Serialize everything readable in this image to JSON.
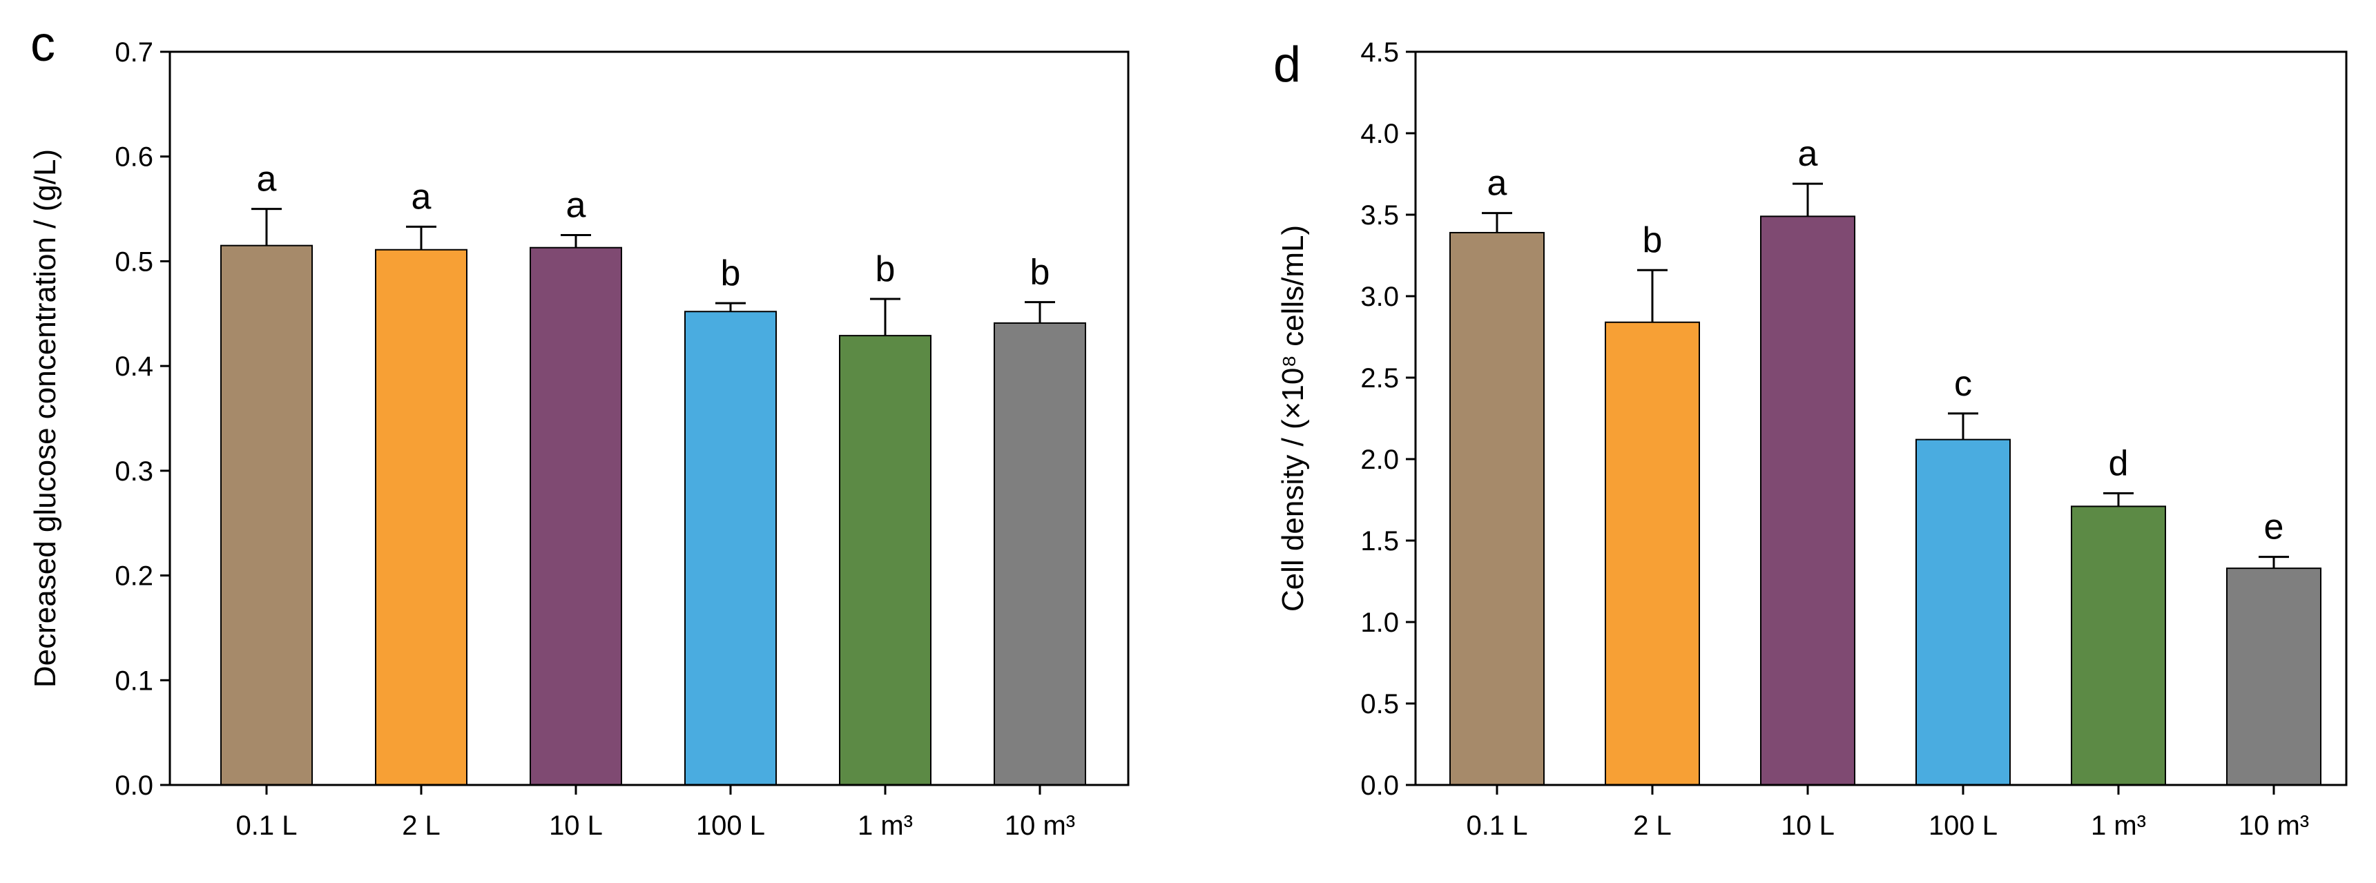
{
  "chart_data": [
    {
      "type": "bar",
      "panel_label": "c",
      "categories": [
        "0.1 L",
        "2 L",
        "10 L",
        "100 L",
        "1 m³",
        "10 m³"
      ],
      "values": [
        0.515,
        0.511,
        0.513,
        0.452,
        0.429,
        0.441
      ],
      "errors": [
        0.035,
        0.022,
        0.012,
        0.008,
        0.035,
        0.02
      ],
      "significance": [
        "a",
        "a",
        "a",
        "b",
        "b",
        "b"
      ],
      "bar_colors": [
        "#a68a6a",
        "#f7a035",
        "#7f4a72",
        "#4aace0",
        "#5c8a45",
        "#7f7f7f"
      ],
      "xlabel": "",
      "ylabel": "Decreased glucose concentration / (g/L)",
      "ylim": [
        0,
        0.7
      ],
      "yticks": [
        "0.0",
        "0.1",
        "0.2",
        "0.3",
        "0.4",
        "0.5",
        "0.6",
        "0.7"
      ],
      "grid": false,
      "legend": "none"
    },
    {
      "type": "bar",
      "panel_label": "d",
      "categories": [
        "0.1 L",
        "2 L",
        "10 L",
        "100 L",
        "1 m³",
        "10 m³"
      ],
      "values": [
        3.39,
        2.84,
        3.49,
        2.12,
        1.71,
        1.33
      ],
      "errors": [
        0.12,
        0.32,
        0.2,
        0.16,
        0.08,
        0.07
      ],
      "significance": [
        "a",
        "b",
        "a",
        "c",
        "d",
        "e"
      ],
      "bar_colors": [
        "#a68a6a",
        "#f7a035",
        "#7f4a72",
        "#4aace0",
        "#5c8a45",
        "#7f7f7f"
      ],
      "xlabel": "",
      "ylabel": "Cell density / (×10⁸ cells/mL)",
      "ylim": [
        0,
        4.5
      ],
      "yticks": [
        "0.0",
        "0.5",
        "1.0",
        "1.5",
        "2.0",
        "2.5",
        "3.0",
        "3.5",
        "4.0",
        "4.5"
      ],
      "grid": false,
      "legend": "none"
    }
  ]
}
